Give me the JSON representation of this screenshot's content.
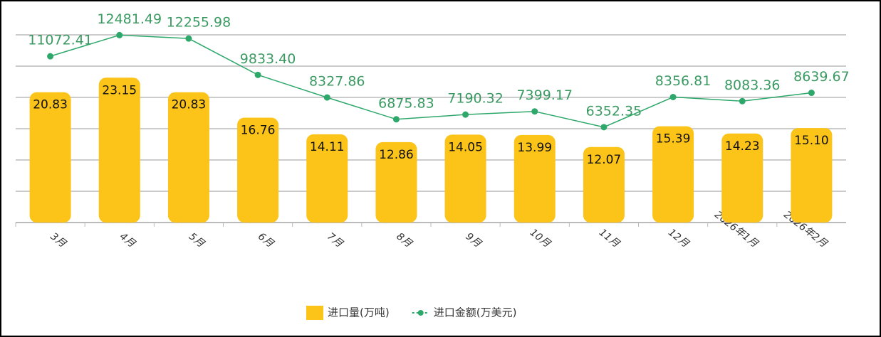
{
  "chart_data": {
    "type": "bar_line",
    "categories": [
      "3月",
      "4月",
      "5月",
      "6月",
      "7月",
      "8月",
      "9月",
      "10月",
      "11月",
      "12月",
      "2026年1月",
      "2026年2月"
    ],
    "series": [
      {
        "name": "进口量(万吨)",
        "type": "bar",
        "color": "#fcc419",
        "values": [
          20.83,
          23.15,
          20.83,
          16.76,
          14.11,
          12.86,
          14.05,
          13.99,
          12.07,
          15.39,
          14.23,
          15.1
        ],
        "value_labels": [
          "20.83",
          "23.15",
          "20.83",
          "16.76",
          "14.11",
          "12.86",
          "14.05",
          "13.99",
          "12.07",
          "15.39",
          "14.23",
          "15.10"
        ]
      },
      {
        "name": "进口金额(万美元)",
        "type": "line",
        "axis": "y2",
        "color": "#2ea86a",
        "values": [
          11072.41,
          12481.49,
          12255.98,
          9833.4,
          8327.86,
          6875.83,
          7190.32,
          7399.17,
          6352.35,
          8356.81,
          8083.36,
          8639.67
        ],
        "value_labels": [
          "11072.41",
          "12481.49",
          "12255.98",
          "9833.40",
          "8327.86",
          "6875.83",
          "7190.32",
          "7399.17",
          "6352.35",
          "8356.81",
          "8083.36",
          "8639.67"
        ]
      }
    ],
    "ylim": [
      0,
      30
    ],
    "yticks": [
      0,
      5,
      10,
      15,
      20,
      25,
      30
    ],
    "y2lim": [
      0,
      12500
    ],
    "grid": true,
    "legend": "bottom"
  }
}
